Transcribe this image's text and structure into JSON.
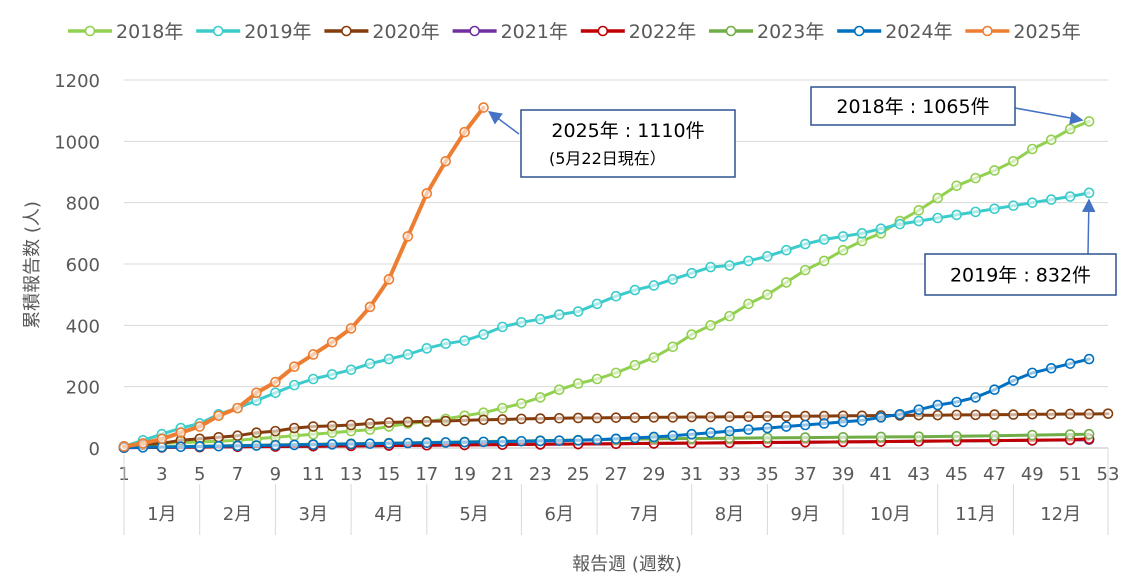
{
  "chart_data": {
    "type": "line",
    "xlabel": "報告週 (週数)",
    "ylabel": "累積報告数 (人)",
    "xlim": [
      1,
      53
    ],
    "ylim": [
      0,
      1200
    ],
    "y_ticks": [
      0,
      200,
      400,
      600,
      800,
      1000,
      1200
    ],
    "x_ticks": [
      1,
      3,
      5,
      7,
      9,
      11,
      13,
      15,
      17,
      19,
      21,
      23,
      25,
      27,
      29,
      31,
      33,
      35,
      37,
      39,
      41,
      43,
      45,
      47,
      49,
      51,
      53
    ],
    "months": [
      {
        "label": "1月",
        "start": 1,
        "end": 5
      },
      {
        "label": "2月",
        "start": 5,
        "end": 9
      },
      {
        "label": "3月",
        "start": 9,
        "end": 13
      },
      {
        "label": "4月",
        "start": 13,
        "end": 17
      },
      {
        "label": "5月",
        "start": 17,
        "end": 22
      },
      {
        "label": "6月",
        "start": 22,
        "end": 26
      },
      {
        "label": "7月",
        "start": 26,
        "end": 31
      },
      {
        "label": "8月",
        "start": 31,
        "end": 35
      },
      {
        "label": "9月",
        "start": 35,
        "end": 39
      },
      {
        "label": "10月",
        "start": 39,
        "end": 44
      },
      {
        "label": "11月",
        "start": 44,
        "end": 48
      },
      {
        "label": "12月",
        "start": 48,
        "end": 53
      }
    ],
    "legend_position": "top",
    "grid": "horizontal",
    "series": [
      {
        "name": "2018年",
        "color": "#92d050",
        "width": 3,
        "x": [
          1,
          2,
          3,
          4,
          5,
          6,
          7,
          8,
          9,
          10,
          11,
          12,
          13,
          14,
          15,
          16,
          17,
          18,
          19,
          20,
          21,
          22,
          23,
          24,
          25,
          26,
          27,
          28,
          29,
          30,
          31,
          32,
          33,
          34,
          35,
          36,
          37,
          38,
          39,
          40,
          41,
          42,
          43,
          44,
          45,
          46,
          47,
          48,
          49,
          50,
          51,
          52
        ],
        "values": [
          3,
          10,
          15,
          18,
          20,
          22,
          25,
          30,
          35,
          40,
          45,
          50,
          55,
          60,
          70,
          80,
          85,
          95,
          105,
          115,
          130,
          145,
          165,
          190,
          210,
          225,
          245,
          270,
          295,
          330,
          370,
          400,
          430,
          470,
          500,
          540,
          580,
          610,
          645,
          675,
          700,
          740,
          775,
          815,
          855,
          880,
          905,
          935,
          975,
          1005,
          1040,
          1065
        ]
      },
      {
        "name": "2019年",
        "color": "#3ccbcb",
        "width": 3,
        "x": [
          1,
          2,
          3,
          4,
          5,
          6,
          7,
          8,
          9,
          10,
          11,
          12,
          13,
          14,
          15,
          16,
          17,
          18,
          19,
          20,
          21,
          22,
          23,
          24,
          25,
          26,
          27,
          28,
          29,
          30,
          31,
          32,
          33,
          34,
          35,
          36,
          37,
          38,
          39,
          40,
          41,
          42,
          43,
          44,
          45,
          46,
          47,
          48,
          49,
          50,
          51,
          52
        ],
        "values": [
          5,
          25,
          45,
          65,
          80,
          110,
          130,
          155,
          180,
          205,
          225,
          240,
          255,
          275,
          290,
          305,
          325,
          340,
          350,
          370,
          395,
          410,
          420,
          435,
          445,
          470,
          495,
          515,
          530,
          550,
          570,
          590,
          595,
          610,
          625,
          645,
          665,
          680,
          690,
          700,
          715,
          730,
          740,
          750,
          760,
          770,
          780,
          790,
          800,
          810,
          820,
          832
        ]
      },
      {
        "name": "2020年",
        "color": "#843c0c",
        "width": 3,
        "x": [
          1,
          2,
          3,
          4,
          5,
          6,
          7,
          8,
          9,
          10,
          11,
          12,
          13,
          14,
          15,
          16,
          17,
          18,
          19,
          20,
          21,
          22,
          23,
          24,
          25,
          26,
          27,
          28,
          29,
          30,
          31,
          32,
          33,
          34,
          35,
          36,
          37,
          38,
          39,
          40,
          41,
          42,
          43,
          44,
          45,
          46,
          47,
          48,
          49,
          50,
          51,
          52,
          53
        ],
        "values": [
          5,
          10,
          15,
          25,
          30,
          35,
          40,
          50,
          55,
          65,
          70,
          72,
          75,
          80,
          83,
          85,
          87,
          88,
          90,
          92,
          93,
          95,
          96,
          97,
          98,
          98,
          99,
          99,
          100,
          100,
          101,
          101,
          102,
          102,
          103,
          103,
          104,
          104,
          105,
          105,
          106,
          106,
          107,
          107,
          108,
          108,
          109,
          109,
          110,
          110,
          111,
          111,
          112
        ]
      },
      {
        "name": "2021年",
        "color": "#7030a0",
        "width": 3,
        "x": [
          1,
          3,
          5,
          7,
          9,
          11,
          13,
          15,
          17,
          19,
          21,
          23,
          25,
          27,
          29,
          31,
          33,
          35,
          37,
          39,
          41,
          43,
          45,
          47,
          49,
          51,
          52
        ],
        "values": [
          1,
          2,
          3,
          4,
          5,
          6,
          7,
          8,
          9,
          10,
          11,
          12,
          13,
          14,
          15,
          16,
          17,
          18,
          19,
          20,
          21,
          22,
          23,
          24,
          25,
          26,
          27
        ]
      },
      {
        "name": "2022年",
        "color": "#c00000",
        "width": 3,
        "x": [
          1,
          3,
          5,
          7,
          9,
          11,
          13,
          15,
          17,
          19,
          21,
          23,
          25,
          27,
          29,
          31,
          33,
          35,
          37,
          39,
          41,
          43,
          45,
          47,
          49,
          51,
          52
        ],
        "values": [
          1,
          2,
          3,
          4,
          5,
          6,
          7,
          8,
          9,
          10,
          11,
          12,
          13,
          14,
          15,
          16,
          17,
          18,
          19,
          20,
          21,
          22,
          23,
          24,
          25,
          27,
          30
        ]
      },
      {
        "name": "2023年",
        "color": "#70ad47",
        "width": 3,
        "x": [
          1,
          3,
          5,
          7,
          9,
          11,
          13,
          15,
          17,
          19,
          21,
          23,
          25,
          27,
          29,
          31,
          33,
          35,
          37,
          39,
          41,
          43,
          45,
          47,
          49,
          51,
          52
        ],
        "values": [
          2,
          4,
          6,
          8,
          10,
          12,
          14,
          16,
          18,
          20,
          22,
          24,
          26,
          28,
          30,
          31,
          32,
          33,
          34,
          35,
          36,
          37,
          38,
          40,
          42,
          44,
          45
        ]
      },
      {
        "name": "2024年",
        "color": "#0070c0",
        "width": 3,
        "x": [
          1,
          2,
          3,
          4,
          5,
          6,
          7,
          8,
          9,
          10,
          11,
          12,
          13,
          14,
          15,
          16,
          17,
          18,
          19,
          20,
          21,
          22,
          23,
          24,
          25,
          26,
          27,
          28,
          29,
          30,
          31,
          32,
          33,
          34,
          35,
          36,
          37,
          38,
          39,
          40,
          41,
          42,
          43,
          44,
          45,
          46,
          47,
          48,
          49,
          50,
          51,
          52
        ],
        "values": [
          1,
          2,
          3,
          4,
          5,
          6,
          7,
          8,
          9,
          10,
          11,
          12,
          13,
          14,
          15,
          16,
          17,
          18,
          19,
          20,
          21,
          22,
          23,
          24,
          25,
          27,
          30,
          33,
          36,
          40,
          45,
          50,
          55,
          60,
          65,
          70,
          75,
          80,
          85,
          90,
          100,
          110,
          125,
          140,
          150,
          165,
          190,
          220,
          245,
          260,
          275,
          290
        ]
      },
      {
        "name": "2025年",
        "color": "#ed7d31",
        "width": 4,
        "x": [
          1,
          2,
          3,
          4,
          5,
          6,
          7,
          8,
          9,
          10,
          11,
          12,
          13,
          14,
          15,
          16,
          17,
          18,
          19,
          20
        ],
        "values": [
          5,
          15,
          30,
          50,
          70,
          105,
          130,
          180,
          215,
          265,
          305,
          345,
          390,
          460,
          550,
          690,
          830,
          935,
          1030,
          1110
        ]
      }
    ],
    "annotations": [
      {
        "text": "2025年 : 1110件",
        "sub": "(5月22日現在）",
        "series": "2025年",
        "x": 20,
        "y": 1110
      },
      {
        "text": "2018年 : 1065件",
        "series": "2018年",
        "x": 52,
        "y": 1065
      },
      {
        "text": "2019年 : 832件",
        "series": "2019年",
        "x": 52,
        "y": 832
      }
    ]
  }
}
